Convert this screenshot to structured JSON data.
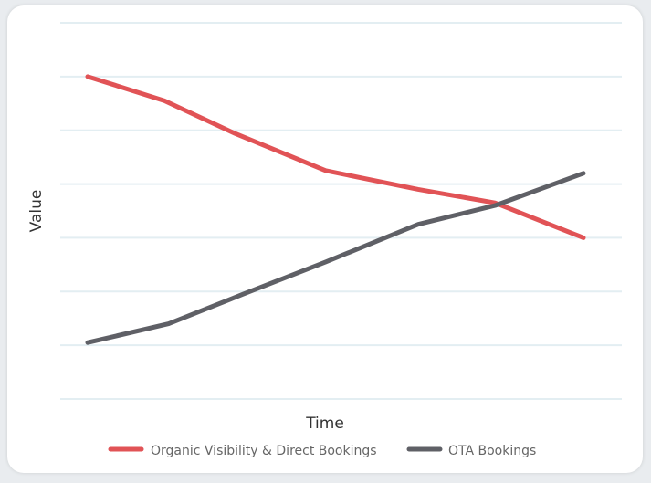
{
  "chart_data": {
    "type": "line",
    "xlabel": "Time",
    "ylabel": "Value",
    "x": [
      1,
      2,
      3,
      4,
      5,
      6,
      7
    ],
    "ylim": [
      0,
      7
    ],
    "grid": true,
    "legend_placement": "bottom",
    "series": [
      {
        "name": "Organic Visibility & Direct Bookings",
        "color": "#e15356",
        "x": [
          1.0,
          1.93,
          2.77,
          3.88,
          5.0,
          5.93,
          7.0
        ],
        "values": [
          6.0,
          5.55,
          4.95,
          4.25,
          3.9,
          3.65,
          3.0
        ]
      },
      {
        "name": "OTA Bookings",
        "color": "#5f6066",
        "x": [
          1.0,
          1.98,
          2.88,
          3.88,
          5.0,
          5.93,
          7.0
        ],
        "values": [
          1.05,
          1.4,
          1.95,
          2.55,
          3.25,
          3.6,
          4.2
        ]
      }
    ]
  }
}
